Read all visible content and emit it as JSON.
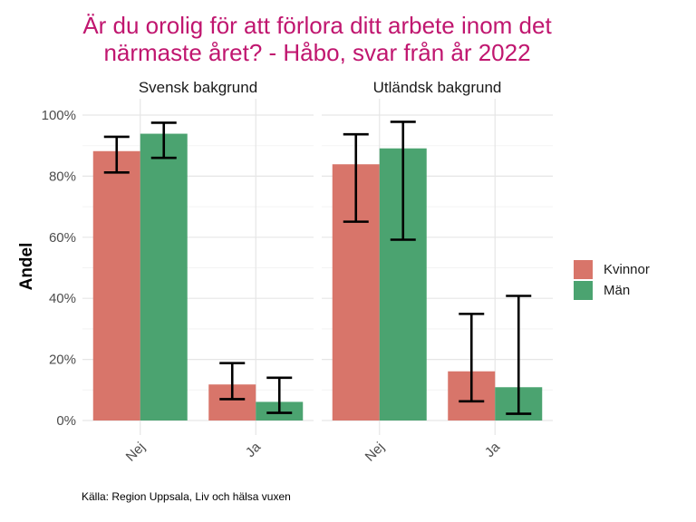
{
  "chart_data": {
    "type": "bar",
    "title_lines": [
      "Är du orolig för att förlora ditt arbete inom det",
      "närmaste året? - Håbo, svar från år 2022"
    ],
    "ylabel": "Andel",
    "caption": "Källa: Region Uppsala, Liv och hälsa vuxen",
    "ylim": [
      0,
      100
    ],
    "y_ticks": [
      {
        "value": 0,
        "label": "0%"
      },
      {
        "value": 20,
        "label": "20%"
      },
      {
        "value": 40,
        "label": "40%"
      },
      {
        "value": 60,
        "label": "60%"
      },
      {
        "value": 80,
        "label": "80%"
      },
      {
        "value": 100,
        "label": "100%"
      }
    ],
    "categories": [
      "Nej",
      "Ja"
    ],
    "legend": {
      "position": "right",
      "items": [
        {
          "name": "Kvinnor",
          "color": "#d8756a"
        },
        {
          "name": "Män",
          "color": "#4ba370"
        }
      ]
    },
    "grid": true,
    "facets": [
      {
        "label": "Svensk bakgrund",
        "series": [
          {
            "name": "Kvinnor",
            "values": [
              88.2,
              11.8
            ],
            "lower": [
              81.2,
              7.0
            ],
            "upper": [
              92.9,
              18.8
            ]
          },
          {
            "name": "Män",
            "values": [
              93.9,
              6.1
            ],
            "lower": [
              86.0,
              2.5
            ],
            "upper": [
              97.5,
              14.0
            ]
          }
        ]
      },
      {
        "label": "Utländsk bakgrund",
        "series": [
          {
            "name": "Kvinnor",
            "values": [
              83.9,
              16.1
            ],
            "lower": [
              65.1,
              6.3
            ],
            "upper": [
              93.7,
              34.9
            ]
          },
          {
            "name": "Män",
            "values": [
              89.1,
              10.9
            ],
            "lower": [
              59.2,
              2.2
            ],
            "upper": [
              97.8,
              40.8
            ]
          }
        ]
      }
    ]
  }
}
